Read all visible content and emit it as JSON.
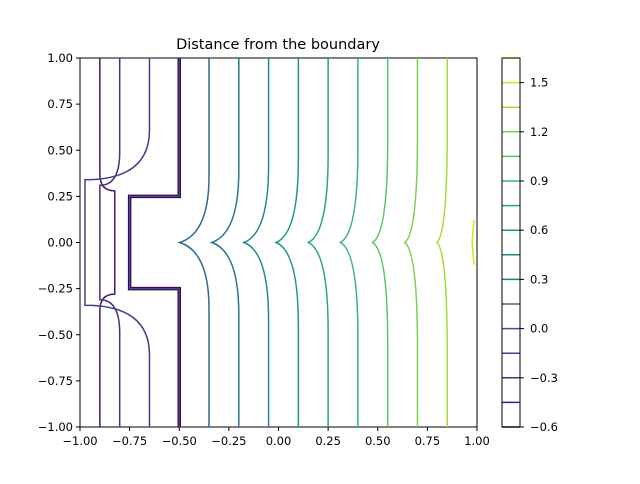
{
  "chart_data": {
    "type": "contour",
    "title": "Distance from the boundary",
    "xlabel": "",
    "ylabel": "",
    "xlim": [
      -1.0,
      1.0
    ],
    "ylim": [
      -1.0,
      1.0
    ],
    "xticks": [
      "−1.00",
      "−0.75",
      "−0.50",
      "−0.25",
      "0.00",
      "0.25",
      "0.50",
      "0.75",
      "1.00"
    ],
    "yticks": [
      "−1.00",
      "−0.75",
      "−0.50",
      "−0.25",
      "0.00",
      "0.25",
      "0.50",
      "0.75",
      "1.00"
    ],
    "grid": false,
    "colormap": "viridis",
    "levels": [
      -0.6,
      -0.45,
      -0.3,
      -0.15,
      0.0,
      0.15,
      0.3,
      0.45,
      0.6,
      0.75,
      0.9,
      1.05,
      1.2,
      1.35,
      1.5,
      1.65
    ],
    "colorbar": {
      "ticks": [
        "1.5",
        "1.2",
        "0.9",
        "0.6",
        "0.3",
        "0.0",
        "−0.3",
        "−0.6"
      ],
      "range": [
        -0.6,
        1.65
      ]
    },
    "boundary": {
      "description": "contour at level 0.0 traces the boundary",
      "x_left": -0.75,
      "x_right": -0.5,
      "y_notch": [
        -0.25,
        0.25
      ]
    },
    "line_positions_far_field": [
      -1.0,
      -0.9,
      -0.8,
      -0.65,
      -0.5,
      -0.35,
      -0.2,
      -0.05,
      0.1,
      0.25,
      0.4,
      0.55,
      0.7,
      0.85
    ]
  },
  "colors": {
    "levels": [
      "#440154",
      "#481a6c",
      "#472f7d",
      "#414487",
      "#39568c",
      "#31688e",
      "#2a788e",
      "#23888e",
      "#1f988b",
      "#22a884",
      "#35b779",
      "#54c568",
      "#7ad151",
      "#a5db36",
      "#d2e21b",
      "#fde725"
    ]
  }
}
